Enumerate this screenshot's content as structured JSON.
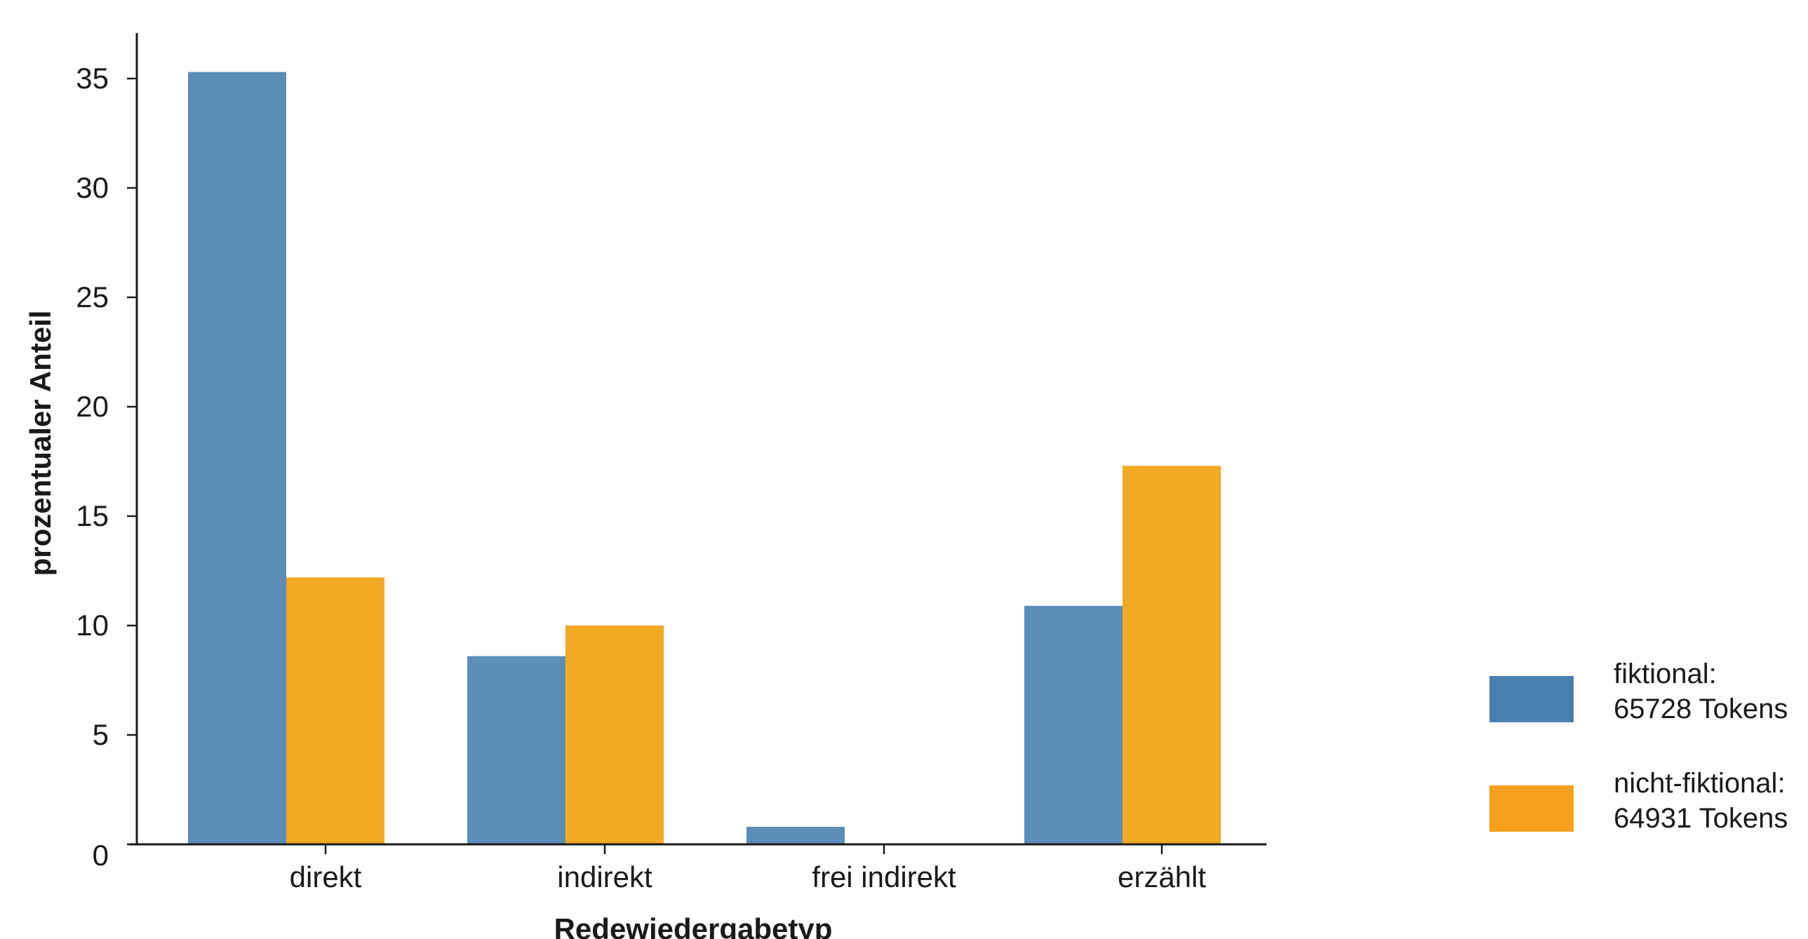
{
  "chart_data": {
    "type": "bar",
    "title": "",
    "xlabel": "Redewiedergabetyp",
    "ylabel": "prozentualer Anteil",
    "categories": [
      "direkt",
      "indirekt",
      "frei indirekt",
      "erzählt"
    ],
    "series": [
      {
        "name_lines": [
          "fiktional:",
          "65728 Tokens"
        ],
        "color": "#5b8db9",
        "legend_color": "#4a7fb2",
        "values": [
          35.3,
          8.6,
          0.8,
          10.9
        ]
      },
      {
        "name_lines": [
          "nicht-fiktional:",
          "64931 Tokens"
        ],
        "color": "#f2a923",
        "legend_color": "#f6a11d",
        "values": [
          12.2,
          10.0,
          0.0,
          17.3
        ]
      }
    ],
    "yticks": [
      0,
      5,
      10,
      15,
      20,
      25,
      30,
      35
    ],
    "ylim": [
      0,
      37
    ],
    "grid": false,
    "legend_position": "right"
  }
}
